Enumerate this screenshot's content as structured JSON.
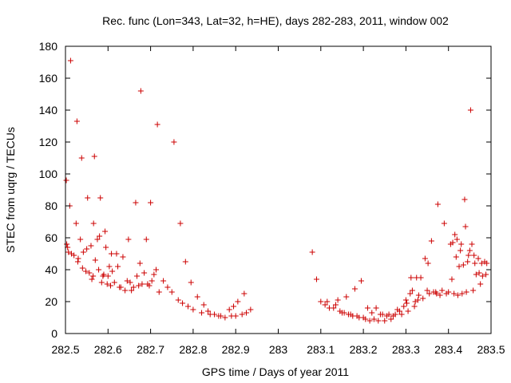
{
  "chart_data": {
    "type": "scatter",
    "title": "Rec. func (Lon=343, Lat=32, h=HE), days 282-283, 2011, window 002",
    "xlabel": "GPS time / Days of year 2011",
    "ylabel": "STEC from uqrg / TECUs",
    "xlim": [
      282.5,
      283.5
    ],
    "ylim": [
      0,
      180
    ],
    "xticks": [
      282.5,
      282.6,
      282.7,
      282.8,
      282.9,
      283,
      283.1,
      283.2,
      283.3,
      283.4,
      283.5
    ],
    "xtick_labels": [
      "282.5",
      "282.6",
      "282.7",
      "282.8",
      "282.9",
      "283",
      "283.1",
      "283.2",
      "283.3",
      "283.4",
      "283.5"
    ],
    "yticks": [
      0,
      20,
      40,
      60,
      80,
      100,
      120,
      140,
      160,
      180
    ],
    "ytick_labels": [
      "0",
      "20",
      "40",
      "60",
      "80",
      "100",
      "120",
      "140",
      "160",
      "180"
    ],
    "grid": false,
    "marker": "+",
    "marker_color": "#cc0000",
    "series": [
      {
        "name": "STEC",
        "points": [
          [
            282.502,
            96
          ],
          [
            282.503,
            56
          ],
          [
            282.505,
            54
          ],
          [
            282.507,
            51
          ],
          [
            282.51,
            80
          ],
          [
            282.512,
            171
          ],
          [
            282.514,
            50
          ],
          [
            282.52,
            49
          ],
          [
            282.525,
            69
          ],
          [
            282.527,
            133
          ],
          [
            282.529,
            45
          ],
          [
            282.53,
            47
          ],
          [
            282.535,
            59
          ],
          [
            282.538,
            110
          ],
          [
            282.54,
            41
          ],
          [
            282.542,
            51
          ],
          [
            282.548,
            39
          ],
          [
            282.55,
            53
          ],
          [
            282.552,
            85
          ],
          [
            282.556,
            38
          ],
          [
            282.56,
            55
          ],
          [
            282.562,
            34
          ],
          [
            282.565,
            36
          ],
          [
            282.566,
            69
          ],
          [
            282.568,
            111
          ],
          [
            282.57,
            46
          ],
          [
            282.575,
            59
          ],
          [
            282.578,
            40
          ],
          [
            282.58,
            61
          ],
          [
            282.582,
            85
          ],
          [
            282.585,
            32
          ],
          [
            282.588,
            36
          ],
          [
            282.59,
            37
          ],
          [
            282.593,
            64
          ],
          [
            282.595,
            54
          ],
          [
            282.598,
            31
          ],
          [
            282.6,
            36
          ],
          [
            282.603,
            42
          ],
          [
            282.606,
            30
          ],
          [
            282.608,
            50
          ],
          [
            282.61,
            39
          ],
          [
            282.615,
            32
          ],
          [
            282.62,
            50
          ],
          [
            282.623,
            42
          ],
          [
            282.627,
            29
          ],
          [
            282.63,
            29
          ],
          [
            282.635,
            48
          ],
          [
            282.64,
            27
          ],
          [
            282.645,
            33
          ],
          [
            282.648,
            59
          ],
          [
            282.652,
            32
          ],
          [
            282.655,
            27
          ],
          [
            282.66,
            29
          ],
          [
            282.665,
            82
          ],
          [
            282.668,
            36
          ],
          [
            282.672,
            30
          ],
          [
            282.675,
            44
          ],
          [
            282.677,
            152
          ],
          [
            282.68,
            31
          ],
          [
            282.685,
            38
          ],
          [
            282.69,
            59
          ],
          [
            282.693,
            31
          ],
          [
            282.697,
            30
          ],
          [
            282.7,
            82
          ],
          [
            282.703,
            33
          ],
          [
            282.708,
            37
          ],
          [
            282.713,
            40
          ],
          [
            282.716,
            131
          ],
          [
            282.72,
            26
          ],
          [
            282.73,
            33
          ],
          [
            282.74,
            29
          ],
          [
            282.75,
            26
          ],
          [
            282.755,
            120
          ],
          [
            282.765,
            21
          ],
          [
            282.77,
            69
          ],
          [
            282.775,
            19
          ],
          [
            282.782,
            45
          ],
          [
            282.788,
            17
          ],
          [
            282.795,
            32
          ],
          [
            282.8,
            15
          ],
          [
            282.81,
            23
          ],
          [
            282.82,
            13
          ],
          [
            282.825,
            18
          ],
          [
            282.835,
            14
          ],
          [
            282.84,
            12
          ],
          [
            282.85,
            12
          ],
          [
            282.86,
            11
          ],
          [
            282.865,
            11
          ],
          [
            282.875,
            10
          ],
          [
            282.885,
            15
          ],
          [
            282.89,
            11
          ],
          [
            282.895,
            17
          ],
          [
            282.9,
            11
          ],
          [
            282.905,
            20
          ],
          [
            282.915,
            12
          ],
          [
            282.92,
            25
          ],
          [
            282.925,
            13
          ],
          [
            282.935,
            15
          ],
          [
            283.08,
            51
          ],
          [
            283.09,
            34
          ],
          [
            283.1,
            20
          ],
          [
            283.11,
            18
          ],
          [
            283.115,
            20
          ],
          [
            283.12,
            16
          ],
          [
            283.13,
            16
          ],
          [
            283.135,
            18
          ],
          [
            283.14,
            21
          ],
          [
            283.145,
            14
          ],
          [
            283.15,
            13
          ],
          [
            283.155,
            13
          ],
          [
            283.16,
            23
          ],
          [
            283.165,
            12
          ],
          [
            283.17,
            12
          ],
          [
            283.175,
            11
          ],
          [
            283.18,
            28
          ],
          [
            283.185,
            11
          ],
          [
            283.19,
            10
          ],
          [
            283.195,
            33
          ],
          [
            283.2,
            10
          ],
          [
            283.205,
            9
          ],
          [
            283.21,
            16
          ],
          [
            283.215,
            8
          ],
          [
            283.22,
            13
          ],
          [
            283.225,
            9
          ],
          [
            283.23,
            16
          ],
          [
            283.235,
            8
          ],
          [
            283.24,
            12
          ],
          [
            283.245,
            12
          ],
          [
            283.25,
            8
          ],
          [
            283.255,
            11
          ],
          [
            283.26,
            12
          ],
          [
            283.265,
            9
          ],
          [
            283.27,
            11
          ],
          [
            283.275,
            12
          ],
          [
            283.28,
            15
          ],
          [
            283.285,
            14
          ],
          [
            283.29,
            12
          ],
          [
            283.295,
            17
          ],
          [
            283.3,
            21
          ],
          [
            283.302,
            19
          ],
          [
            283.305,
            14
          ],
          [
            283.31,
            25
          ],
          [
            283.312,
            35
          ],
          [
            283.315,
            27
          ],
          [
            283.32,
            17
          ],
          [
            283.322,
            20
          ],
          [
            283.325,
            35
          ],
          [
            283.328,
            21
          ],
          [
            283.33,
            24
          ],
          [
            283.335,
            35
          ],
          [
            283.34,
            22
          ],
          [
            283.345,
            47
          ],
          [
            283.35,
            27
          ],
          [
            283.352,
            44
          ],
          [
            283.355,
            25
          ],
          [
            283.36,
            58
          ],
          [
            283.365,
            26
          ],
          [
            283.37,
            26
          ],
          [
            283.372,
            25
          ],
          [
            283.375,
            81
          ],
          [
            283.38,
            24
          ],
          [
            283.385,
            27
          ],
          [
            283.39,
            69
          ],
          [
            283.395,
            25
          ],
          [
            283.4,
            26
          ],
          [
            283.405,
            56
          ],
          [
            283.408,
            34
          ],
          [
            283.41,
            57
          ],
          [
            283.413,
            25
          ],
          [
            283.415,
            62
          ],
          [
            283.418,
            48
          ],
          [
            283.42,
            59
          ],
          [
            283.422,
            24
          ],
          [
            283.425,
            42
          ],
          [
            283.428,
            52
          ],
          [
            283.43,
            56
          ],
          [
            283.432,
            25
          ],
          [
            283.435,
            43
          ],
          [
            283.438,
            84
          ],
          [
            283.44,
            67
          ],
          [
            283.442,
            26
          ],
          [
            283.445,
            45
          ],
          [
            283.447,
            49
          ],
          [
            283.45,
            52
          ],
          [
            283.452,
            140
          ],
          [
            283.455,
            56
          ],
          [
            283.458,
            27
          ],
          [
            283.46,
            49
          ],
          [
            283.462,
            44
          ],
          [
            283.465,
            37
          ],
          [
            283.47,
            47
          ],
          [
            283.472,
            38
          ],
          [
            283.475,
            31
          ],
          [
            283.478,
            44
          ],
          [
            283.48,
            36
          ],
          [
            283.485,
            45
          ],
          [
            283.488,
            37
          ],
          [
            283.49,
            44
          ]
        ]
      }
    ]
  }
}
